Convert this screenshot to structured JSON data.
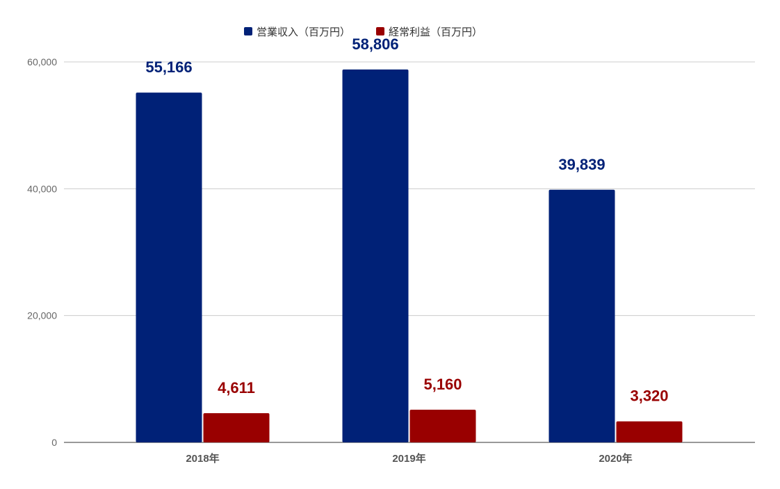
{
  "chart_data": {
    "type": "bar",
    "categories": [
      "2018年",
      "2019年",
      "2020年"
    ],
    "series": [
      {
        "name": "営業収入（百万円）",
        "values": [
          55166,
          58806,
          39839
        ],
        "labels": [
          "55,166",
          "58,806",
          "39,839"
        ],
        "color": "#002177"
      },
      {
        "name": "経常利益（百万円）",
        "values": [
          4611,
          5160,
          3320
        ],
        "labels": [
          "4,611",
          "5,160",
          "3,320"
        ],
        "color": "#990000"
      }
    ],
    "y_ticks": [
      0,
      20000,
      40000,
      60000
    ],
    "y_tick_labels": [
      "0",
      "20,000",
      "40,000",
      "60,000"
    ],
    "ylim": [
      0,
      60000
    ],
    "grid": true,
    "legend_position": "top-center"
  }
}
